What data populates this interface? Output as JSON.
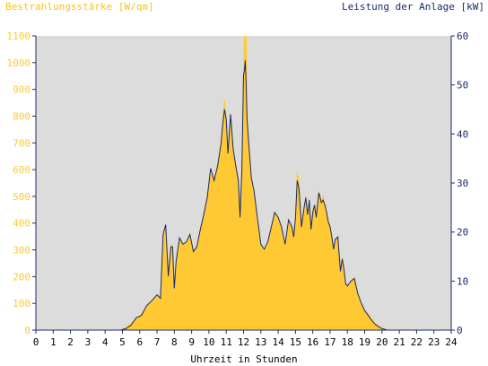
{
  "chart_data": {
    "type": "area",
    "ylabel_left": "Bestrahlungsstärke [W/qm]",
    "ylabel_right": "Leistung der Anlage [kW]",
    "xlabel": "Uhrzeit in Stunden",
    "xlim": [
      0,
      24
    ],
    "ylim_left": [
      0,
      1100
    ],
    "ylim_right": [
      0,
      60
    ],
    "x_ticks": [
      "0",
      "1",
      "2",
      "3",
      "4",
      "5",
      "6",
      "7",
      "8",
      "9",
      "10",
      "11",
      "12",
      "13",
      "14",
      "15",
      "16",
      "17",
      "18",
      "19",
      "20",
      "21",
      "22",
      "23",
      "24"
    ],
    "y_ticks_left": [
      "0",
      "100",
      "200",
      "300",
      "400",
      "500",
      "600",
      "700",
      "800",
      "900",
      "1000",
      "1100"
    ],
    "y_ticks_right": [
      "0",
      "10",
      "20",
      "30",
      "40",
      "50",
      "60"
    ],
    "grid": false,
    "colors": {
      "irradiance": "#ffc933",
      "power": "#1a2a6c",
      "plot_bg": "#dcdcdc",
      "axis": "#1a2a6c"
    },
    "series": [
      {
        "name": "Bestrahlungsstärke [W/qm]",
        "axis": "left",
        "x": [
          0,
          4.9,
          5.2,
          5.5,
          5.8,
          6.1,
          6.4,
          6.7,
          7.0,
          7.2,
          7.35,
          7.5,
          7.65,
          7.8,
          7.9,
          8.0,
          8.1,
          8.3,
          8.5,
          8.7,
          8.9,
          9.1,
          9.3,
          9.5,
          9.7,
          9.9,
          10.1,
          10.3,
          10.5,
          10.7,
          10.8,
          10.9,
          11.0,
          11.1,
          11.25,
          11.4,
          11.55,
          11.7,
          11.8,
          11.9,
          12.0,
          12.05,
          12.1,
          12.15,
          12.2,
          12.3,
          12.45,
          12.6,
          12.8,
          13.0,
          13.2,
          13.4,
          13.6,
          13.8,
          14.0,
          14.2,
          14.4,
          14.6,
          14.8,
          14.9,
          15.0,
          15.1,
          15.2,
          15.35,
          15.5,
          15.6,
          15.7,
          15.8,
          15.9,
          16.0,
          16.1,
          16.2,
          16.35,
          16.5,
          16.6,
          16.7,
          16.8,
          16.9,
          17.0,
          17.1,
          17.2,
          17.3,
          17.45,
          17.6,
          17.7,
          17.8,
          17.9,
          18.0,
          18.2,
          18.4,
          18.6,
          18.8,
          19.0,
          19.2,
          19.4,
          19.6,
          19.8,
          20.0,
          20.3,
          20.6,
          24
        ],
        "y": [
          0,
          0,
          10,
          25,
          45,
          60,
          90,
          110,
          130,
          120,
          360,
          390,
          200,
          320,
          310,
          150,
          260,
          340,
          320,
          330,
          360,
          300,
          310,
          380,
          430,
          500,
          590,
          560,
          620,
          700,
          780,
          860,
          790,
          650,
          810,
          680,
          620,
          560,
          420,
          600,
          960,
          1100,
          1020,
          1100,
          800,
          700,
          560,
          520,
          420,
          320,
          300,
          330,
          380,
          440,
          420,
          380,
          320,
          410,
          390,
          350,
          420,
          590,
          560,
          390,
          460,
          500,
          430,
          490,
          380,
          450,
          470,
          420,
          520,
          480,
          500,
          470,
          440,
          410,
          390,
          350,
          300,
          340,
          350,
          220,
          270,
          230,
          170,
          160,
          180,
          200,
          140,
          100,
          70,
          60,
          40,
          25,
          15,
          8,
          0,
          0,
          0
        ]
      },
      {
        "name": "Leistung der Anlage [kW]",
        "axis": "right",
        "x": [
          0,
          4.9,
          5.2,
          5.5,
          5.8,
          6.1,
          6.4,
          6.7,
          7.0,
          7.2,
          7.35,
          7.5,
          7.65,
          7.8,
          7.9,
          8.0,
          8.1,
          8.3,
          8.5,
          8.7,
          8.9,
          9.1,
          9.3,
          9.5,
          9.7,
          9.9,
          10.1,
          10.3,
          10.5,
          10.7,
          10.8,
          10.9,
          11.0,
          11.1,
          11.25,
          11.4,
          11.55,
          11.7,
          11.8,
          11.9,
          12.0,
          12.05,
          12.1,
          12.15,
          12.2,
          12.3,
          12.45,
          12.6,
          12.8,
          13.0,
          13.2,
          13.4,
          13.6,
          13.8,
          14.0,
          14.2,
          14.4,
          14.6,
          14.8,
          14.9,
          15.0,
          15.1,
          15.2,
          15.35,
          15.5,
          15.6,
          15.7,
          15.8,
          15.9,
          16.0,
          16.1,
          16.2,
          16.35,
          16.5,
          16.6,
          16.7,
          16.8,
          16.9,
          17.0,
          17.1,
          17.2,
          17.3,
          17.45,
          17.6,
          17.7,
          17.8,
          17.9,
          18.0,
          18.2,
          18.4,
          18.6,
          18.8,
          19.0,
          19.2,
          19.4,
          19.6,
          19.8,
          20.0,
          20.3,
          20.6,
          24
        ],
        "y": [
          0,
          0,
          0.3,
          1,
          2.5,
          3,
          5,
          6,
          7.2,
          6.5,
          19.5,
          21.5,
          11,
          17,
          17,
          8.5,
          14,
          18.8,
          17.5,
          18,
          19.5,
          16,
          17,
          20.5,
          23.5,
          27,
          33,
          30.5,
          33.5,
          38,
          42,
          45,
          43,
          36,
          44,
          37,
          33.5,
          30.5,
          23,
          32.5,
          52,
          53,
          55,
          50,
          43,
          38,
          31,
          28.5,
          23,
          17.5,
          16.5,
          18,
          21,
          24,
          23,
          21,
          17.5,
          22.5,
          21,
          19,
          23,
          30.5,
          29,
          21,
          25,
          27,
          23.5,
          26.5,
          20.5,
          24,
          25.5,
          23,
          28,
          26,
          26.5,
          25.5,
          24,
          22,
          21,
          19,
          16.5,
          18.5,
          19,
          12,
          14.5,
          12.5,
          9.5,
          9,
          10,
          10.5,
          7.5,
          5.5,
          4,
          3,
          2,
          1.2,
          0.7,
          0.3,
          0,
          0,
          0
        ]
      }
    ]
  }
}
